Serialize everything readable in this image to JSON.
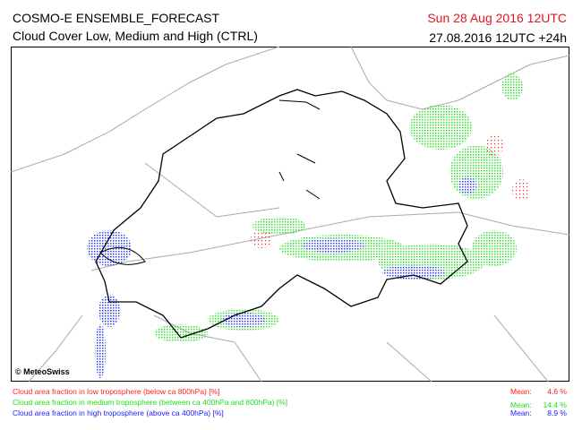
{
  "header": {
    "title": "COSMO-E ENSEMBLE_FORECAST",
    "subtitle": "Cloud Cover Low, Medium and High (CTRL)",
    "date": "Sun 28 Aug 2016 12UTC",
    "valid": "27.08.2016 12UTC +24h",
    "date_color": "#e8141c"
  },
  "map": {
    "credit": "© MeteoSwiss"
  },
  "legend": [
    {
      "label": "Cloud area fraction in low troposphere (below ca 800hPa) [%]",
      "mean_label": "Mean:",
      "mean": "4.6 %",
      "color": "#ff2020"
    },
    {
      "label": "Cloud area fraction in medium troposphere (between ca 400hPa and 800hPa) [%]",
      "mean_label": "Mean:",
      "mean": "14.4 %",
      "color": "#20e020"
    },
    {
      "label": "Cloud area fraction in high troposphere (above ca 400hPa) [%]",
      "mean_label": "Mean:",
      "mean": "8.9 %",
      "color": "#2020ff"
    }
  ]
}
